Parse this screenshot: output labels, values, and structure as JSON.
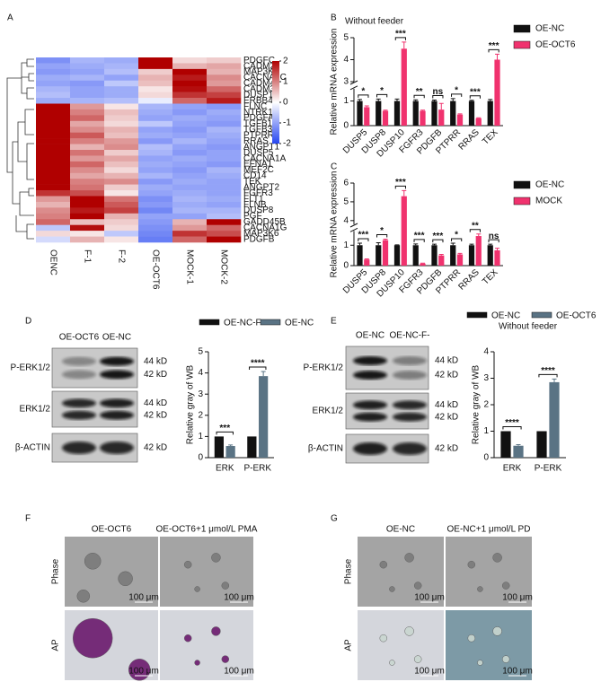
{
  "panel_labels": [
    "A",
    "B",
    "C",
    "D",
    "E",
    "F",
    "G"
  ],
  "chart_data": [
    {
      "type": "heatmap",
      "x_categories": [
        "OENC",
        "F-1",
        "F-2",
        "OE-OCT6",
        "MOCK-1",
        "MOCK-2"
      ],
      "y_categories": [
        "PDGFC",
        "CADM2",
        "MAP3K2",
        "CACNA1C",
        "CADM4",
        "CADM3",
        "DUSP10",
        "ERBB4",
        "FLNC",
        "NTRK1",
        "PDGFA",
        "TGFB1",
        "TGFB3",
        "PTPRR",
        "RRAS",
        "ANGPT1",
        "DUSP5",
        "CACNA1A",
        "EFNA1",
        "MEF2C",
        "CD14",
        "TEK",
        "ANGPT2",
        "FGFR3",
        "FLT1",
        "FLNB",
        "DUSP8",
        "PGF",
        "GADD45B",
        "CACNA1G",
        "MAP3K6",
        "PDGFB"
      ],
      "values": [
        [
          -1.2,
          -0.8,
          -0.9,
          2,
          0.3,
          0.4
        ],
        [
          -1,
          -0.9,
          -0.8,
          2,
          0.6,
          0.7
        ],
        [
          -1.1,
          -1,
          -0.7,
          0.4,
          2,
          0.6
        ],
        [
          -0.9,
          -0.8,
          -1,
          0.6,
          1.8,
          0.9
        ],
        [
          -1,
          -1.1,
          -0.6,
          0.5,
          2,
          0.8
        ],
        [
          -0.8,
          -1,
          -0.9,
          0.2,
          1.9,
          1.2
        ],
        [
          -0.7,
          -1,
          -0.9,
          0.3,
          1.6,
          1.5
        ],
        [
          -0.9,
          -0.8,
          -0.7,
          -0.2,
          1.2,
          1.8
        ],
        [
          2,
          0.8,
          0.2,
          -0.8,
          -1,
          -1.1
        ],
        [
          2,
          1,
          0.5,
          -0.9,
          -1.1,
          -0.9
        ],
        [
          2,
          1.2,
          0.4,
          -1,
          -0.9,
          -1
        ],
        [
          2,
          0.7,
          0.3,
          -0.6,
          -1,
          -1.1
        ],
        [
          2,
          0.9,
          0.6,
          -1,
          -1.1,
          -0.8
        ],
        [
          2,
          1.3,
          0.5,
          -0.9,
          -1,
          -0.9
        ],
        [
          2,
          1,
          0.8,
          -1.1,
          -0.8,
          -1
        ],
        [
          2,
          0.6,
          0.9,
          -0.7,
          -1,
          -1.1
        ],
        [
          2,
          1.1,
          0.4,
          -0.8,
          -1.1,
          -1
        ],
        [
          2,
          0.8,
          0.7,
          -1,
          -0.9,
          -1
        ],
        [
          2,
          1.2,
          0.5,
          -0.9,
          -1,
          -1.1
        ],
        [
          2,
          0.9,
          0.3,
          -1,
          -1.1,
          -0.8
        ],
        [
          2,
          0.7,
          0.6,
          -0.8,
          -1,
          -0.9
        ],
        [
          2,
          1,
          0.9,
          -1.1,
          -0.9,
          -1
        ],
        [
          2,
          1.1,
          0.4,
          -0.9,
          -1,
          -1
        ],
        [
          1.6,
          1.4,
          0.2,
          -1,
          -0.9,
          -1
        ],
        [
          0.8,
          2,
          1.1,
          -1.2,
          -0.8,
          -0.9
        ],
        [
          0.6,
          2,
          1.3,
          -1.1,
          -0.9,
          -1
        ],
        [
          0.9,
          1.8,
          1.5,
          -1.3,
          -0.8,
          -0.8
        ],
        [
          1,
          2,
          0.6,
          -1,
          -1,
          -0.7
        ],
        [
          1.2,
          0.5,
          0.4,
          -1.1,
          0.6,
          2
        ],
        [
          -0.6,
          1.9,
          0.3,
          -1.2,
          0.8,
          1.2
        ],
        [
          0.3,
          0.2,
          -0.6,
          -1.3,
          1.6,
          1.4
        ],
        [
          -0.4,
          0.6,
          0.2,
          -1.4,
          1.2,
          2
        ]
      ],
      "zlim": [
        -2,
        2
      ],
      "colorbar_ticks": [
        2,
        1,
        0,
        -1,
        -2
      ],
      "colors": [
        "#2646f0",
        "#ffffff",
        "#b00000"
      ]
    },
    {
      "type": "bar",
      "subtitle": "Without feeder",
      "ylabel": "Relative mRNA expression",
      "categories": [
        "DUSP5",
        "DUSP8",
        "DUSP10",
        "FGFR3",
        "PDGFB",
        "PTPRR",
        "RRAS",
        "TEX"
      ],
      "series": [
        {
          "name": "OE-NC",
          "color": "#111111",
          "values": [
            1,
            1,
            1,
            1,
            1,
            1,
            1,
            1
          ],
          "errors": [
            0.06,
            0.08,
            0.08,
            0.05,
            0.04,
            0.1,
            0.03,
            0.06
          ]
        },
        {
          "name": "OE-OCT6",
          "color": "#f0326e",
          "values": [
            0.75,
            0.6,
            4.5,
            0.6,
            0.65,
            0.45,
            0.3,
            4
          ],
          "errors": [
            0.05,
            0.03,
            0.3,
            0.03,
            0.25,
            0.03,
            0.02,
            0.25
          ]
        }
      ],
      "significance": [
        "*",
        "*",
        "***",
        "**",
        "ns",
        "*",
        "***",
        "***"
      ],
      "ylim": [
        0,
        5
      ],
      "yticks": [
        0,
        1,
        3,
        4,
        5
      ],
      "axis_break": [
        1.5,
        3
      ],
      "legend": "right"
    },
    {
      "type": "bar",
      "ylabel": "Relative mRNA expression",
      "categories": [
        "DUSP5",
        "DUSP8",
        "DUSP10",
        "FGFR3",
        "PDGFB",
        "PTPRR",
        "RRAS",
        "TEX"
      ],
      "series": [
        {
          "name": "OE-NC",
          "color": "#111111",
          "values": [
            1,
            1,
            1,
            1,
            1,
            1,
            1,
            1
          ],
          "errors": [
            0.1,
            0.12,
            0.02,
            0.06,
            0.05,
            0.1,
            0.05,
            0.05
          ]
        },
        {
          "name": "MOCK",
          "color": "#f0326e",
          "values": [
            0.3,
            1.25,
            5.3,
            0.1,
            0.5,
            0.55,
            1.45,
            0.75
          ],
          "errors": [
            0.03,
            0.05,
            0.3,
            0.02,
            0.05,
            0.05,
            0.1,
            0.1
          ]
        }
      ],
      "significance": [
        "***",
        "*",
        "***",
        "***",
        "***",
        "*",
        "**",
        "ns"
      ],
      "ylim": [
        0,
        6
      ],
      "yticks": [
        0,
        1,
        4,
        5,
        6
      ],
      "axis_break": [
        1.7,
        3.8
      ],
      "legend": "right"
    },
    {
      "type": "bar",
      "ylabel": "Relative gray of WB",
      "categories": [
        "ERK",
        "P-ERK"
      ],
      "series": [
        {
          "name": "OE-NC-F-",
          "color": "#111111",
          "values": [
            1,
            1
          ],
          "errors": [
            null,
            null
          ]
        },
        {
          "name": "OE-NC",
          "color": "#5a7384",
          "values": [
            0.55,
            3.85
          ],
          "errors": [
            0.05,
            0.22
          ]
        }
      ],
      "significance": [
        "***",
        "****"
      ],
      "ylim": [
        0,
        5
      ],
      "yticks": [
        0,
        1,
        2,
        3,
        4,
        5
      ],
      "legend": "top"
    },
    {
      "type": "bar",
      "subtitle": "Without feeder",
      "ylabel": "Relative gray of WB",
      "categories": [
        "ERK",
        "P-ERK"
      ],
      "series": [
        {
          "name": "OE-NC",
          "color": "#111111",
          "values": [
            1,
            1
          ],
          "errors": [
            null,
            null
          ]
        },
        {
          "name": "OE-OCT6",
          "color": "#5a7384",
          "values": [
            0.45,
            2.85
          ],
          "errors": [
            0.04,
            0.12
          ]
        }
      ],
      "significance": [
        "****",
        "****"
      ],
      "ylim": [
        0,
        4
      ],
      "yticks": [
        0,
        1,
        2,
        3,
        4
      ],
      "legend": "top"
    }
  ],
  "blots": [
    {
      "lanes": [
        "OE-OCT6",
        "OE-NC"
      ],
      "rows": [
        {
          "label": "P-ERK1/2",
          "sizes": [
            "44 kD",
            "42 kD"
          ]
        },
        {
          "label": "ERK1/2",
          "sizes": [
            "44 kD",
            "42 kD"
          ]
        },
        {
          "label": "β-ACTIN",
          "sizes": [
            "42 kD"
          ]
        }
      ]
    },
    {
      "lanes": [
        "OE-NC",
        "OE-NC-F-"
      ],
      "rows": [
        {
          "label": "P-ERK1/2",
          "sizes": [
            "44 kD",
            "42 kD"
          ]
        },
        {
          "label": "ERK1/2",
          "sizes": [
            "44 kD",
            "42 kD"
          ]
        },
        {
          "label": "β-ACTIN",
          "sizes": [
            "42 kD"
          ]
        }
      ]
    }
  ],
  "images": [
    {
      "columns": [
        "OE-OCT6",
        "OE-OCT6+1 μmol/L PMA"
      ],
      "rows": [
        "Phase",
        "AP"
      ],
      "scale_bar": "100 μm"
    },
    {
      "columns": [
        "OE-NC",
        "OE-NC+1 μmol/L PD"
      ],
      "rows": [
        "Phase",
        "AP"
      ],
      "scale_bar": "100 μm"
    }
  ]
}
